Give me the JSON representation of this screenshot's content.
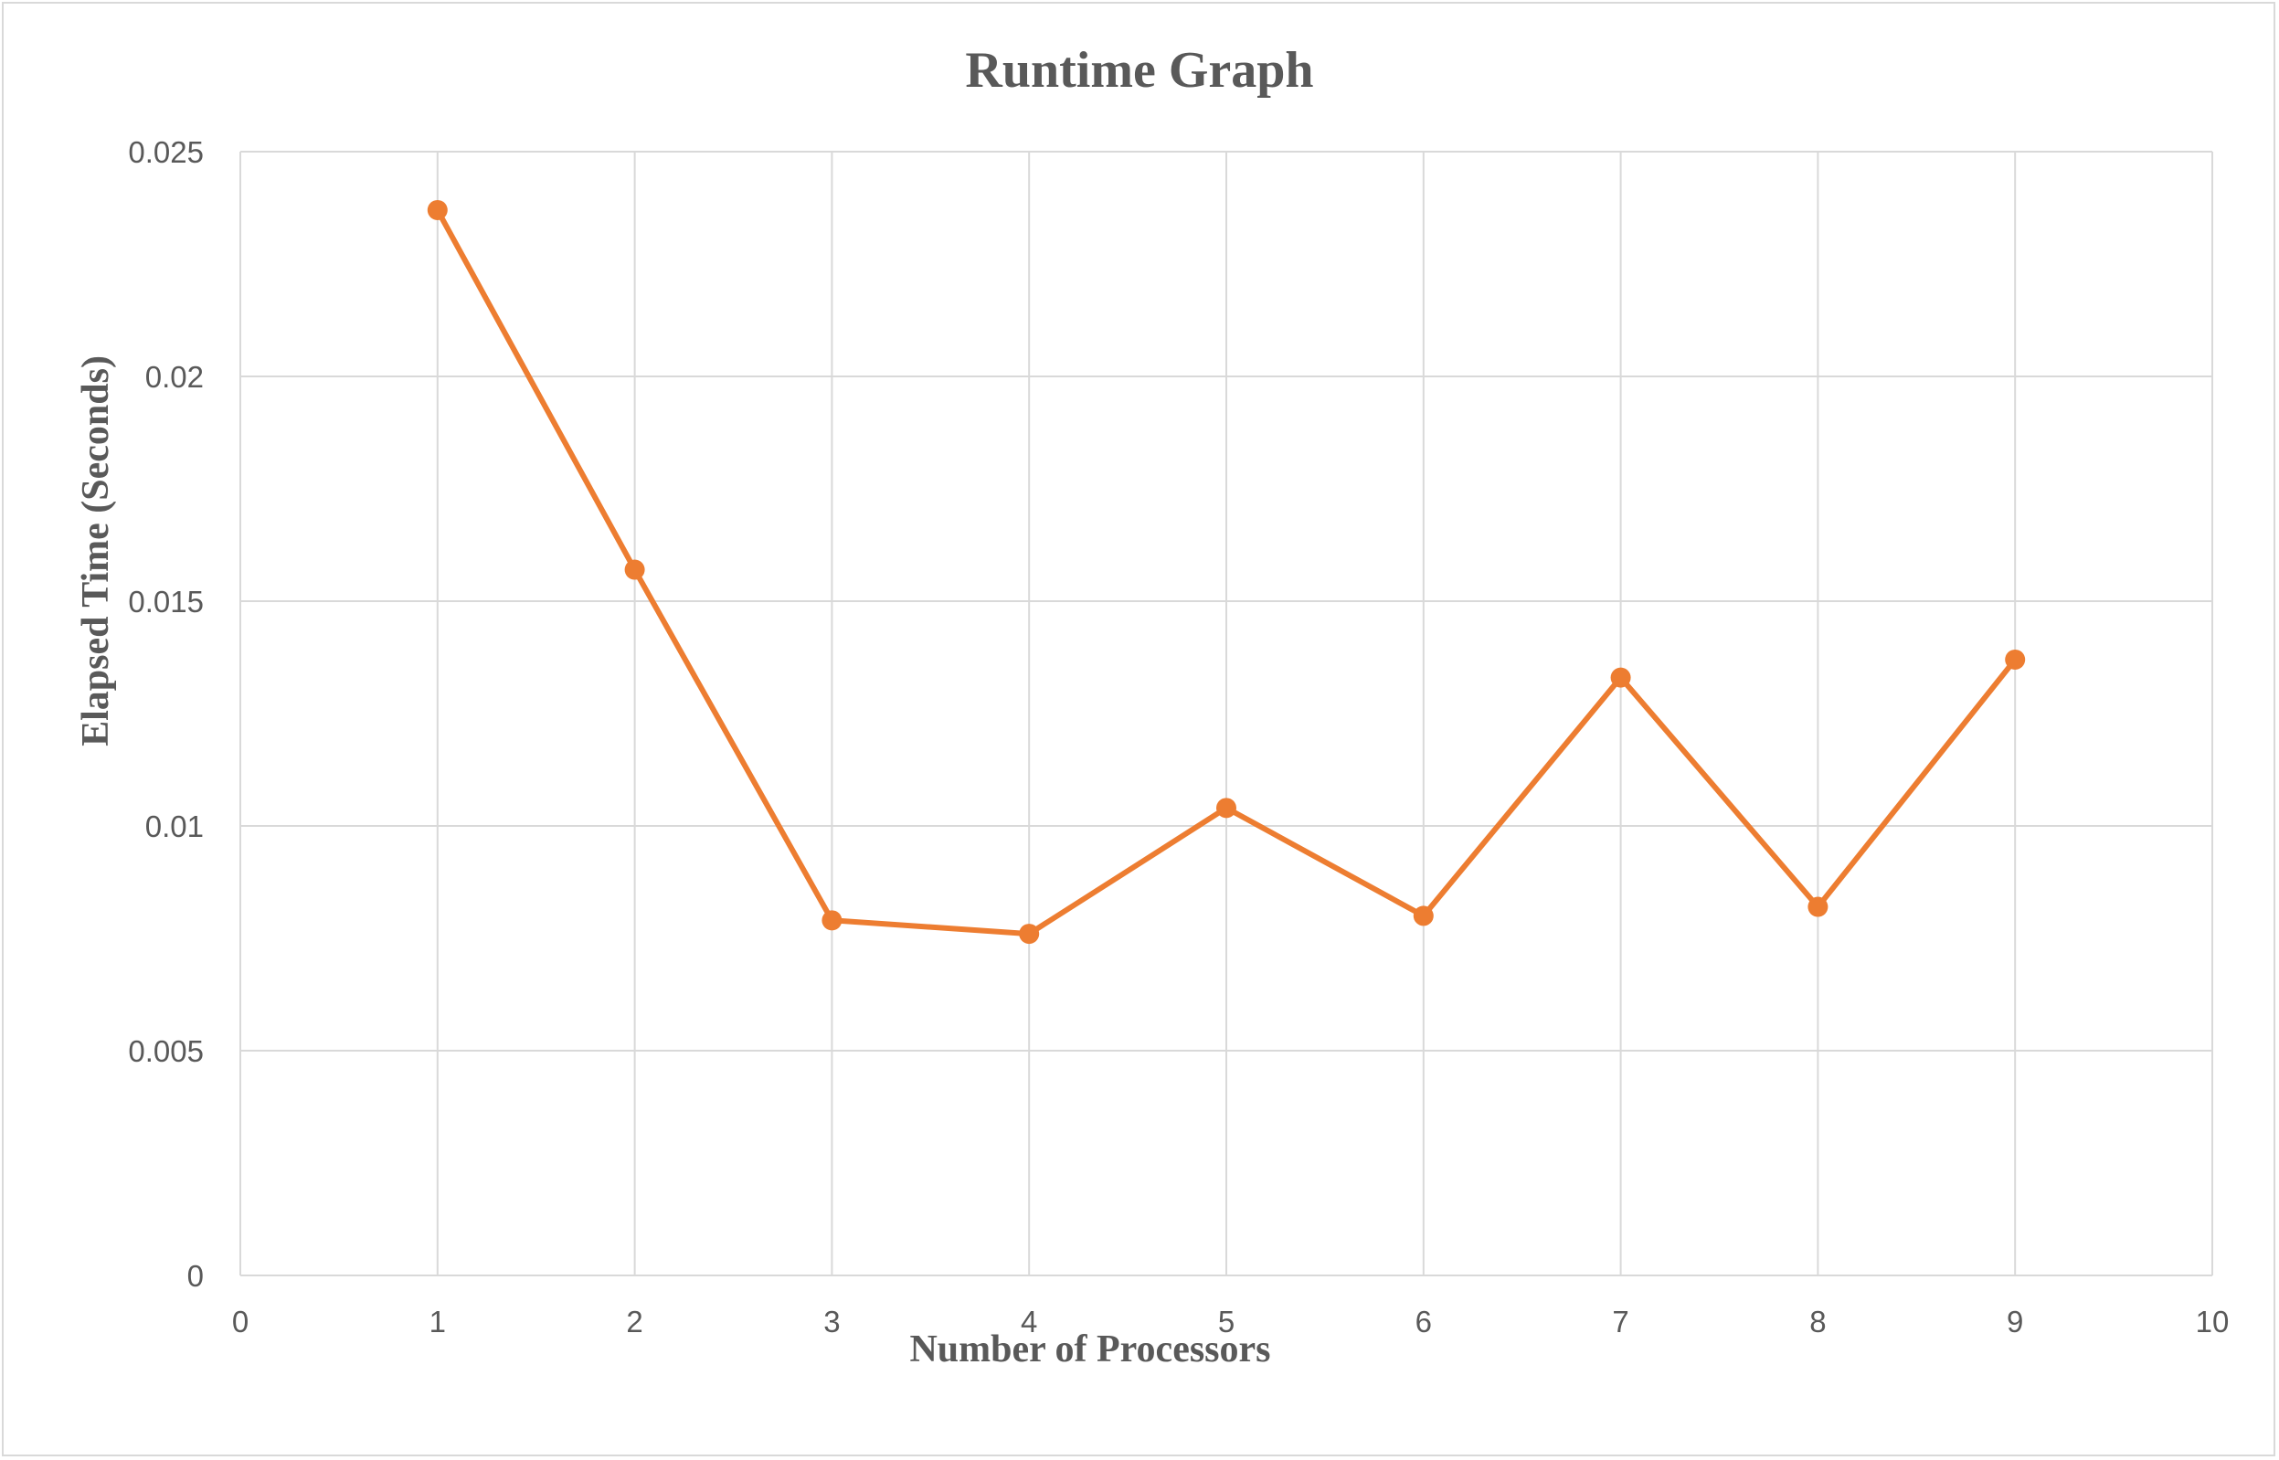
{
  "chart_data": {
    "type": "line",
    "title": "Runtime Graph",
    "xlabel": "Number of Processors",
    "ylabel": "Elapsed Time (Seconds)",
    "xlim": [
      0,
      10
    ],
    "ylim": [
      0,
      0.025
    ],
    "xticks": [
      0,
      1,
      2,
      3,
      4,
      5,
      6,
      7,
      8,
      9,
      10
    ],
    "yticks": [
      0,
      0.005,
      0.01,
      0.015,
      0.02,
      0.025
    ],
    "ytick_labels": [
      "0",
      "0.005",
      "0.01",
      "0.015",
      "0.02",
      "0.025"
    ],
    "grid": true,
    "legend": "none",
    "series": [
      {
        "color": "#ed7d31",
        "x": [
          1,
          2,
          3,
          4,
          5,
          6,
          7,
          8,
          9
        ],
        "y": [
          0.0237,
          0.0157,
          0.0079,
          0.0076,
          0.0104,
          0.008,
          0.0133,
          0.0082,
          0.0137
        ]
      }
    ]
  }
}
